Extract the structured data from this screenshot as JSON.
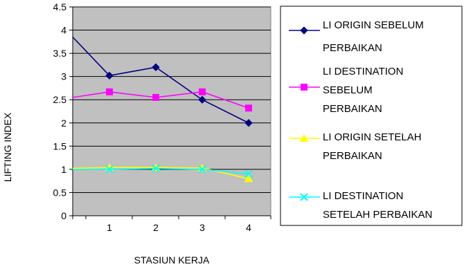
{
  "chart_data": {
    "type": "line",
    "categories": [
      "1",
      "2",
      "3",
      "4"
    ],
    "xlabel": "STASIUN KERJA",
    "ylabel": "LIFTING INDEX",
    "ylim": [
      0,
      4.5
    ],
    "yticks": [
      "0",
      "0.5",
      "1",
      "1.5",
      "2",
      "2.5",
      "3",
      "3.5",
      "4",
      "4.5"
    ],
    "grid": "horizontal",
    "plot_background": "#c0c0c0",
    "legend_position": "right",
    "series": [
      {
        "name": "LI ORIGIN SEBELUM PERBAIKAN",
        "name_lines": [
          "LI ORIGIN SEBELUM",
          "PERBAIKAN"
        ],
        "color": "#000080",
        "marker": "diamond",
        "start": 3.85,
        "values": [
          3.02,
          3.2,
          2.5,
          2.0
        ]
      },
      {
        "name": "LI DESTINATION SEBELUM PERBAIKAN",
        "name_lines": [
          "LI DESTINATION",
          "SEBELUM",
          "PERBAIKAN"
        ],
        "color": "#ff00ff",
        "marker": "square",
        "start": 2.55,
        "values": [
          2.67,
          2.55,
          2.67,
          2.32
        ]
      },
      {
        "name": "LI ORIGIN SETELAH PERBAIKAN",
        "name_lines": [
          "LI ORIGIN SETELAH",
          "PERBAIKAN"
        ],
        "color": "#ffff00",
        "marker": "triangle",
        "start": 1.02,
        "values": [
          1.04,
          1.04,
          1.03,
          0.8
        ]
      },
      {
        "name": "LI DESTINATION SETELAH PERBAIKAN",
        "name_lines": [
          "LI DESTINATION",
          "SETELAH PERBAIKAN"
        ],
        "color": "#00ffff",
        "marker": "x",
        "start": 1.0,
        "values": [
          1.0,
          1.02,
          1.0,
          0.9
        ]
      }
    ]
  }
}
